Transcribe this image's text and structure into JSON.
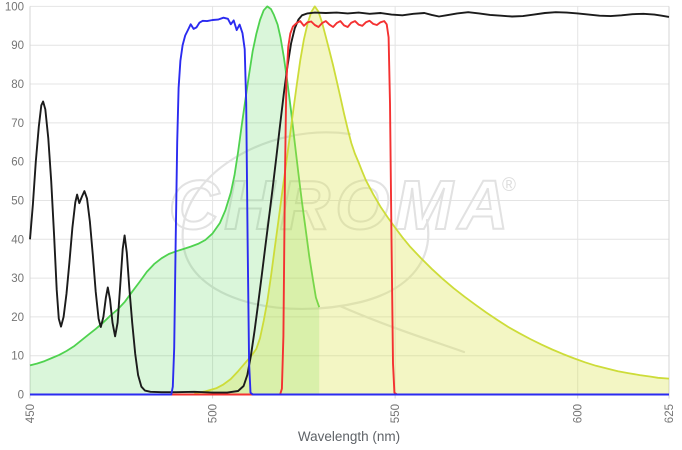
{
  "chart_data": {
    "type": "area",
    "title": "",
    "xlabel": "Wavelength (nm)",
    "ylabel": "",
    "xlim": [
      450,
      625
    ],
    "ylim": [
      0,
      100
    ],
    "x_ticks": [
      450,
      500,
      550,
      600,
      625
    ],
    "y_ticks": [
      0,
      10,
      20,
      30,
      40,
      50,
      60,
      70,
      80,
      90,
      100
    ],
    "grid": true,
    "legend": "none",
    "watermark": {
      "text": "CHROMA",
      "reg": "®"
    },
    "colors": {
      "grid": "#e4e4e4",
      "axis_zero": "#c9c9c9",
      "border": "#d4d4d4",
      "tick_label": "#757575",
      "axis_title": "#5f6368",
      "watermark": "#e2e2e2",
      "excitation_fill": "rgba(70,210,70,0.20)",
      "excitation_stroke": "#4fd24f",
      "emission_fill": "rgba(214,224,60,0.30)",
      "emission_stroke": "#cddc39",
      "dichroic_stroke": "#1b1b1b",
      "emitter_stroke": "#f43131",
      "exciter_stroke": "#2b2bf0"
    },
    "series": [
      {
        "name": "fluorophore-excitation-area",
        "style": "area",
        "fill_key": "excitation_fill",
        "stroke_key": "excitation_stroke",
        "width": 1.8,
        "points": [
          [
            450,
            7.5
          ],
          [
            452,
            8
          ],
          [
            454,
            8.6
          ],
          [
            456,
            9.4
          ],
          [
            458,
            10.2
          ],
          [
            460,
            11.2
          ],
          [
            462,
            12.4
          ],
          [
            464,
            13.9
          ],
          [
            466,
            15.4
          ],
          [
            468,
            16.9
          ],
          [
            470,
            18.5
          ],
          [
            472,
            20.3
          ],
          [
            474,
            21.9
          ],
          [
            476,
            23.9
          ],
          [
            478,
            26.5
          ],
          [
            480,
            29
          ],
          [
            482,
            31.6
          ],
          [
            484,
            33.6
          ],
          [
            486,
            35.1
          ],
          [
            488,
            36.2
          ],
          [
            490,
            36.9
          ],
          [
            492,
            37.5
          ],
          [
            494,
            38.1
          ],
          [
            496,
            38.8
          ],
          [
            498,
            39.8
          ],
          [
            500,
            41.5
          ],
          [
            502,
            44.2
          ],
          [
            503.5,
            47.5
          ],
          [
            505,
            52
          ],
          [
            506,
            56.5
          ],
          [
            507,
            62.5
          ],
          [
            508,
            69.5
          ],
          [
            509,
            76
          ],
          [
            510,
            82.5
          ],
          [
            511,
            88.5
          ],
          [
            512,
            93
          ],
          [
            513,
            96.5
          ],
          [
            514,
            99
          ],
          [
            515,
            100
          ],
          [
            516,
            99.3
          ],
          [
            516.8,
            97.8
          ],
          [
            517.8,
            95.3
          ],
          [
            518.6,
            92
          ],
          [
            519.5,
            87
          ],
          [
            520.5,
            80.5
          ],
          [
            521.5,
            73
          ],
          [
            522.5,
            65
          ],
          [
            523.5,
            57
          ],
          [
            524.5,
            49.5
          ],
          [
            525.5,
            42.5
          ],
          [
            526.5,
            35.5
          ],
          [
            527.5,
            29.5
          ],
          [
            528.3,
            25
          ],
          [
            529.2,
            22.5
          ]
        ]
      },
      {
        "name": "fluorophore-emission-area",
        "style": "area",
        "fill_key": "emission_fill",
        "stroke_key": "emission_stroke",
        "width": 1.8,
        "points": [
          [
            495,
            0.3
          ],
          [
            498,
            0.8
          ],
          [
            501,
            1.6
          ],
          [
            503,
            2.6
          ],
          [
            505,
            4
          ],
          [
            507,
            6
          ],
          [
            509,
            8.2
          ],
          [
            511,
            10.4
          ],
          [
            512,
            11.8
          ],
          [
            513,
            14.5
          ],
          [
            514,
            19
          ],
          [
            515,
            24
          ],
          [
            516,
            30.5
          ],
          [
            517,
            37.5
          ],
          [
            518,
            44.5
          ],
          [
            519,
            51.5
          ],
          [
            520,
            58.5
          ],
          [
            521,
            65.5
          ],
          [
            522,
            72.5
          ],
          [
            523,
            79.5
          ],
          [
            524,
            86
          ],
          [
            525,
            91.5
          ],
          [
            526,
            95.5
          ],
          [
            527,
            98.5
          ],
          [
            528,
            100
          ],
          [
            529,
            98.6
          ],
          [
            530,
            95.8
          ],
          [
            531,
            92.2
          ],
          [
            532,
            88.6
          ],
          [
            533,
            84.8
          ],
          [
            534,
            80.8
          ],
          [
            535,
            76.6
          ],
          [
            536,
            72.4
          ],
          [
            537,
            68.4
          ],
          [
            538,
            64.8
          ],
          [
            539,
            62
          ],
          [
            540,
            59.8
          ],
          [
            541,
            57.4
          ],
          [
            542,
            55.2
          ],
          [
            544,
            51.6
          ],
          [
            546,
            48.4
          ],
          [
            548,
            45.6
          ],
          [
            550,
            43
          ],
          [
            552,
            40.5
          ],
          [
            554,
            38.2
          ],
          [
            557,
            35.2
          ],
          [
            560,
            32.4
          ],
          [
            563,
            29.8
          ],
          [
            566,
            27.4
          ],
          [
            569,
            25.2
          ],
          [
            572,
            23.1
          ],
          [
            575,
            21.1
          ],
          [
            578,
            19.2
          ],
          [
            581,
            17.4
          ],
          [
            584,
            15.8
          ],
          [
            587,
            14.3
          ],
          [
            590,
            12.9
          ],
          [
            593,
            11.6
          ],
          [
            596,
            10.4
          ],
          [
            599,
            9.3
          ],
          [
            602,
            8.3
          ],
          [
            605,
            7.4
          ],
          [
            608,
            6.7
          ],
          [
            611,
            6
          ],
          [
            614,
            5.5
          ],
          [
            617,
            5
          ],
          [
            620,
            4.6
          ],
          [
            622,
            4.3
          ],
          [
            625,
            4.1
          ]
        ]
      },
      {
        "name": "dichroic-longpass-curve",
        "style": "line",
        "stroke_key": "dichroic_stroke",
        "width": 1.9,
        "points": [
          [
            450,
            40
          ],
          [
            450.8,
            49
          ],
          [
            451.6,
            60
          ],
          [
            452.4,
            69
          ],
          [
            453.1,
            74.5
          ],
          [
            453.6,
            75.5
          ],
          [
            454.2,
            73.5
          ],
          [
            455,
            66
          ],
          [
            455.8,
            55
          ],
          [
            456.6,
            41
          ],
          [
            457.3,
            27
          ],
          [
            457.9,
            19.5
          ],
          [
            458.5,
            17.5
          ],
          [
            459.2,
            20
          ],
          [
            460,
            26
          ],
          [
            460.8,
            34
          ],
          [
            461.6,
            43
          ],
          [
            462.4,
            49.5
          ],
          [
            462.9,
            51.5
          ],
          [
            463.5,
            49.3
          ],
          [
            464.2,
            51
          ],
          [
            464.9,
            52.4
          ],
          [
            465.6,
            50.5
          ],
          [
            466.4,
            44.5
          ],
          [
            467.2,
            36
          ],
          [
            468,
            26.5
          ],
          [
            468.8,
            19.5
          ],
          [
            469.4,
            17.4
          ],
          [
            470.1,
            20
          ],
          [
            470.8,
            25
          ],
          [
            471.3,
            27.6
          ],
          [
            471.9,
            24.5
          ],
          [
            472.6,
            18.5
          ],
          [
            473.3,
            15
          ],
          [
            474,
            18.5
          ],
          [
            474.7,
            28
          ],
          [
            475.4,
            37.5
          ],
          [
            475.9,
            41
          ],
          [
            476.5,
            36.5
          ],
          [
            477.2,
            27.5
          ],
          [
            478,
            18.5
          ],
          [
            478.8,
            10.5
          ],
          [
            479.6,
            5
          ],
          [
            480.5,
            2
          ],
          [
            481.5,
            1
          ],
          [
            483,
            0.7
          ],
          [
            486,
            0.6
          ],
          [
            490,
            0.6
          ],
          [
            495,
            0.7
          ],
          [
            500,
            0.5
          ],
          [
            504,
            0.5
          ],
          [
            507,
            0.9
          ],
          [
            508.5,
            2.2
          ],
          [
            509.5,
            5
          ],
          [
            510.5,
            10
          ],
          [
            511.5,
            16.5
          ],
          [
            512.5,
            23.5
          ],
          [
            513.5,
            31
          ],
          [
            514.5,
            38.5
          ],
          [
            515.5,
            46
          ],
          [
            516.5,
            53.5
          ],
          [
            517.5,
            61.5
          ],
          [
            518.5,
            69.5
          ],
          [
            519.5,
            77.5
          ],
          [
            520.5,
            84.5
          ],
          [
            521.5,
            90.5
          ],
          [
            522.5,
            94.3
          ],
          [
            523.5,
            96.6
          ],
          [
            524.5,
            97.7
          ],
          [
            526,
            98.2
          ],
          [
            528,
            98.4
          ],
          [
            531,
            98.3
          ],
          [
            534,
            98.4
          ],
          [
            537,
            98.2
          ],
          [
            540,
            98.4
          ],
          [
            543,
            98.1
          ],
          [
            546,
            98.3
          ],
          [
            549,
            97.9
          ],
          [
            552,
            97.7
          ],
          [
            555,
            98.1
          ],
          [
            558,
            98.3
          ],
          [
            560,
            97.8
          ],
          [
            562,
            97.4
          ],
          [
            564,
            97.7
          ],
          [
            567,
            98.2
          ],
          [
            570,
            98.5
          ],
          [
            573,
            98.2
          ],
          [
            576,
            97.8
          ],
          [
            579,
            97.6
          ],
          [
            582,
            97.4
          ],
          [
            585,
            97.5
          ],
          [
            588,
            97.9
          ],
          [
            591,
            98.3
          ],
          [
            594,
            98.5
          ],
          [
            597,
            98.4
          ],
          [
            600,
            98.2
          ],
          [
            603,
            97.9
          ],
          [
            606,
            97.6
          ],
          [
            609,
            97.5
          ],
          [
            612,
            97.7
          ],
          [
            615,
            98
          ],
          [
            618,
            98.1
          ],
          [
            621,
            97.9
          ],
          [
            623,
            97.6
          ],
          [
            625,
            97.3
          ]
        ]
      },
      {
        "name": "emission-filter-bandpass-curve",
        "style": "line",
        "stroke_key": "emitter_stroke",
        "width": 1.9,
        "points": [
          [
            450,
            0
          ],
          [
            518.5,
            0
          ],
          [
            519,
            1.5
          ],
          [
            519.4,
            15
          ],
          [
            519.8,
            55
          ],
          [
            520.2,
            80
          ],
          [
            520.7,
            89.5
          ],
          [
            521.3,
            93
          ],
          [
            522,
            94.8
          ],
          [
            523,
            95.7
          ],
          [
            524,
            96.2
          ],
          [
            525,
            95
          ],
          [
            526,
            95.9
          ],
          [
            527,
            96.1
          ],
          [
            528,
            95.2
          ],
          [
            529,
            94.7
          ],
          [
            530,
            95.7
          ],
          [
            531,
            96.2
          ],
          [
            532,
            95.3
          ],
          [
            533,
            94.7
          ],
          [
            534,
            95.7
          ],
          [
            535,
            96.2
          ],
          [
            536,
            95.1
          ],
          [
            537,
            94.7
          ],
          [
            538,
            95.8
          ],
          [
            539,
            96.2
          ],
          [
            540,
            95.3
          ],
          [
            541,
            95
          ],
          [
            542,
            95.9
          ],
          [
            543,
            96.3
          ],
          [
            544,
            95.5
          ],
          [
            545,
            95.2
          ],
          [
            546,
            95.9
          ],
          [
            547,
            96.2
          ],
          [
            547.7,
            95.4
          ],
          [
            548.2,
            92
          ],
          [
            548.6,
            75
          ],
          [
            549,
            40
          ],
          [
            549.4,
            8
          ],
          [
            549.8,
            0.5
          ],
          [
            550.5,
            0
          ],
          [
            625,
            0
          ]
        ]
      },
      {
        "name": "excitation-filter-bandpass-curve",
        "style": "line",
        "stroke_key": "exciter_stroke",
        "width": 1.9,
        "points": [
          [
            450,
            0
          ],
          [
            488.7,
            0
          ],
          [
            489.1,
            2
          ],
          [
            489.5,
            12
          ],
          [
            489.9,
            40
          ],
          [
            490.3,
            65
          ],
          [
            490.7,
            79
          ],
          [
            491.2,
            86
          ],
          [
            491.8,
            90
          ],
          [
            492.5,
            92.5
          ],
          [
            493.2,
            93.8
          ],
          [
            494,
            95.4
          ],
          [
            494.8,
            94.2
          ],
          [
            495.6,
            94.6
          ],
          [
            496.4,
            95.8
          ],
          [
            497.3,
            96.3
          ],
          [
            498.5,
            96.2
          ],
          [
            500,
            96.5
          ],
          [
            501.5,
            96.6
          ],
          [
            503,
            97.1
          ],
          [
            504.2,
            96.8
          ],
          [
            505,
            95.4
          ],
          [
            505.8,
            96.4
          ],
          [
            506.6,
            93.9
          ],
          [
            507.4,
            95.3
          ],
          [
            508.2,
            93.1
          ],
          [
            508.8,
            89
          ],
          [
            509.2,
            75
          ],
          [
            509.6,
            40
          ],
          [
            510,
            8
          ],
          [
            510.4,
            0.5
          ],
          [
            511,
            0
          ],
          [
            625,
            0
          ]
        ]
      }
    ]
  }
}
